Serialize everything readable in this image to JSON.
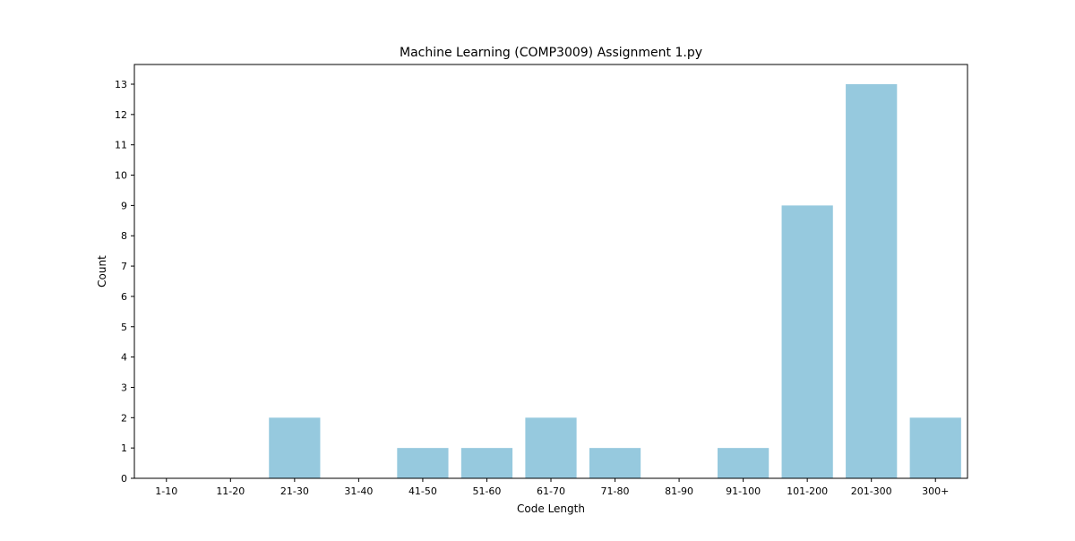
{
  "chart_data": {
    "type": "bar",
    "title": "Machine Learning (COMP3009) Assignment 1.py",
    "xlabel": "Code Length",
    "ylabel": "Count",
    "categories": [
      "1-10",
      "11-20",
      "21-30",
      "31-40",
      "41-50",
      "51-60",
      "61-70",
      "71-80",
      "81-90",
      "91-100",
      "101-200",
      "201-300",
      "300+"
    ],
    "values": [
      0,
      0,
      2,
      0,
      1,
      1,
      2,
      1,
      0,
      1,
      9,
      13,
      2
    ],
    "ylim": [
      0,
      13.65
    ],
    "yticks": [
      0,
      1,
      2,
      3,
      4,
      5,
      6,
      7,
      8,
      9,
      10,
      11,
      12,
      13
    ],
    "grid": false,
    "bar_color": "#96c9de"
  }
}
